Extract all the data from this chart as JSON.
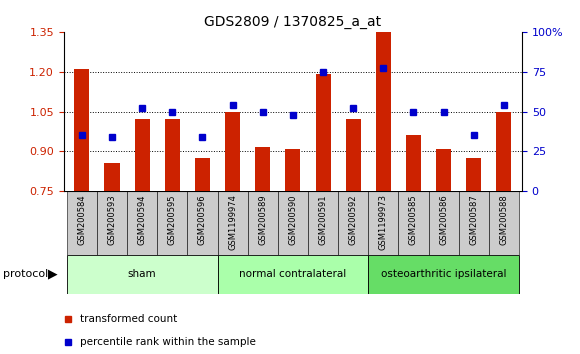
{
  "title": "GDS2809 / 1370825_a_at",
  "samples": [
    "GSM200584",
    "GSM200593",
    "GSM200594",
    "GSM200595",
    "GSM200596",
    "GSM1199974",
    "GSM200589",
    "GSM200590",
    "GSM200591",
    "GSM200592",
    "GSM1199973",
    "GSM200585",
    "GSM200586",
    "GSM200587",
    "GSM200588"
  ],
  "bar_values": [
    1.21,
    0.855,
    1.02,
    1.02,
    0.875,
    1.05,
    0.915,
    0.91,
    1.19,
    1.02,
    1.35,
    0.96,
    0.91,
    0.875,
    1.05
  ],
  "blue_values": [
    0.96,
    0.955,
    1.065,
    1.05,
    0.955,
    1.075,
    1.05,
    1.035,
    1.2,
    1.065,
    1.215,
    1.05,
    1.05,
    0.96,
    1.075
  ],
  "bar_color": "#cc2200",
  "blue_color": "#0000cc",
  "ylim_left": [
    0.75,
    1.35
  ],
  "ylim_right": [
    0,
    100
  ],
  "yticks_left": [
    0.75,
    0.9,
    1.05,
    1.2,
    1.35
  ],
  "yticks_right": [
    0,
    25,
    50,
    75,
    100
  ],
  "ytick_labels_right": [
    "0",
    "25",
    "50",
    "75",
    "100%"
  ],
  "grid_vals": [
    0.9,
    1.05,
    1.2
  ],
  "groups": [
    {
      "label": "sham",
      "start": 0,
      "end": 5,
      "color": "#ccffcc"
    },
    {
      "label": "normal contralateral",
      "start": 5,
      "end": 10,
      "color": "#aaffaa"
    },
    {
      "label": "osteoarthritic ipsilateral",
      "start": 10,
      "end": 15,
      "color": "#66dd66"
    }
  ],
  "protocol_label": "protocol",
  "legend_items": [
    {
      "color": "#cc2200",
      "label": "transformed count"
    },
    {
      "color": "#0000cc",
      "label": "percentile rank within the sample"
    }
  ],
  "bg_color": "#ffffff",
  "tick_bg": "#cccccc",
  "bar_bottom": 0.75,
  "bar_width": 0.5,
  "figsize": [
    5.8,
    3.54
  ],
  "dpi": 100
}
